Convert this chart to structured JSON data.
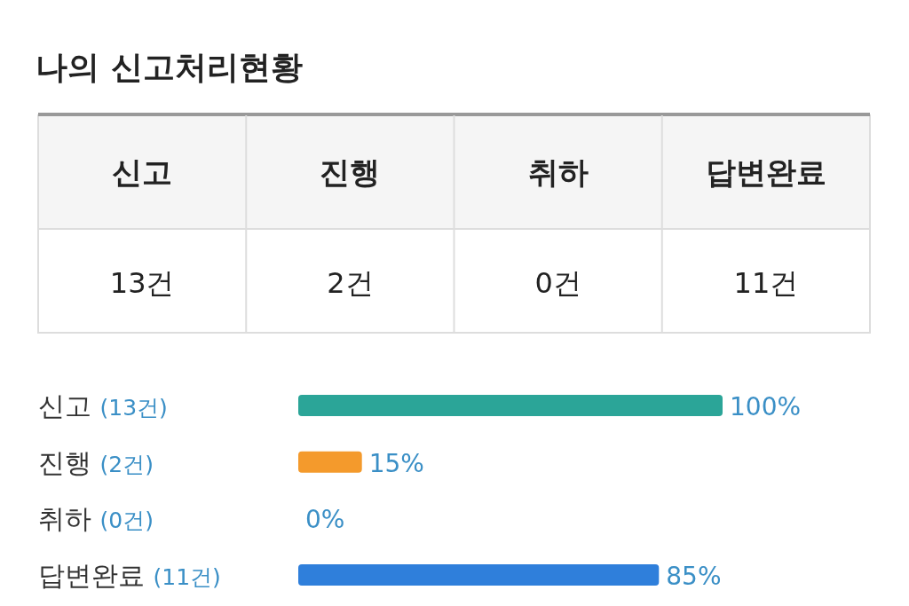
{
  "chart_data": [
    {
      "type": "other",
      "title": "나의 신고처리현황",
      "categories": [
        "신고",
        "진행",
        "취하",
        "답변완료"
      ],
      "value_labels": [
        "13건",
        "2건",
        "0건",
        "11건"
      ]
    },
    {
      "type": "bar",
      "orientation": "horizontal",
      "categories": [
        "신고 (13건)",
        "진행 (2건)",
        "취하 (0건)",
        "답변완료 (11건)"
      ],
      "values": [
        100,
        15,
        0,
        85
      ],
      "value_labels": [
        "100%",
        "15%",
        "0%",
        "85%"
      ],
      "colors": [
        "#2ba598",
        "#f49a2c",
        "#2ba598",
        "#2f7fdb"
      ],
      "xlim": [
        0,
        100
      ]
    }
  ]
}
